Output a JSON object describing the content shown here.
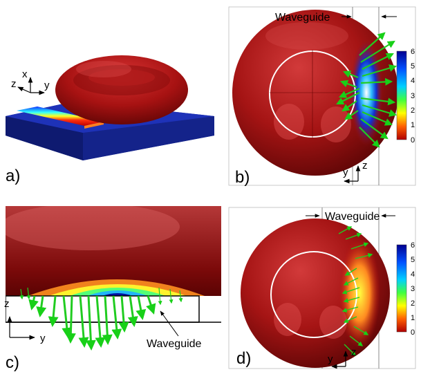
{
  "panels": {
    "a": {
      "letter": "a)",
      "axes": {
        "x": "x",
        "y": "y",
        "z": "z"
      }
    },
    "b": {
      "letter": "b)",
      "waveguide_label": "Waveguide",
      "axes": {
        "y": "y",
        "z": "z"
      },
      "colorbar_ticks": [
        "6",
        "5",
        "4",
        "3",
        "2",
        "1",
        "0"
      ]
    },
    "c": {
      "letter": "c)",
      "waveguide_label": "Waveguide",
      "axes": {
        "y": "y",
        "z": "z"
      }
    },
    "d": {
      "letter": "d)",
      "waveguide_label": "Waveguide",
      "axes": {
        "y": "y",
        "z": "z"
      },
      "colorbar_ticks": [
        "6",
        "5",
        "4",
        "3",
        "2",
        "1",
        "0"
      ]
    }
  },
  "colors": {
    "cell_red": "#a01010",
    "substrate_blue": "#1a2a9a",
    "arrow_green": "#22cc22"
  },
  "icons": {
    "arrow": "force-vector-arrow"
  }
}
